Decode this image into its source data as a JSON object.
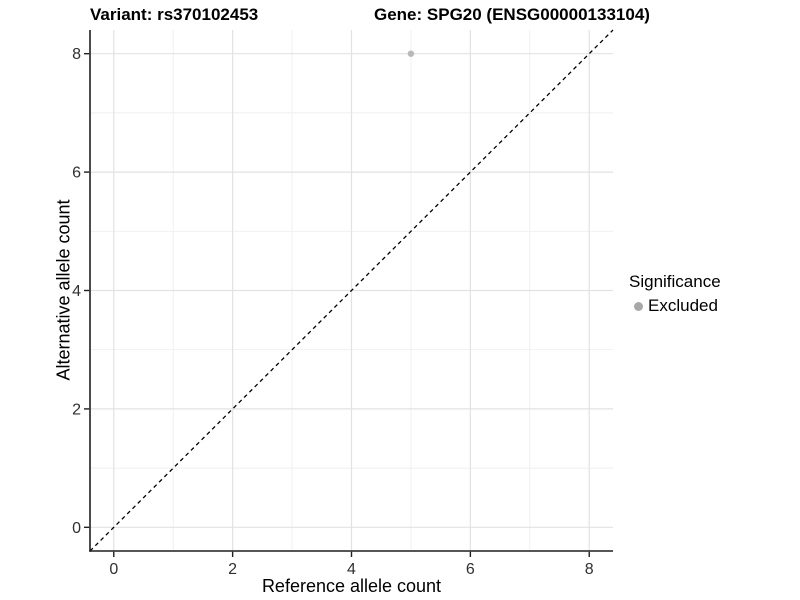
{
  "titles": {
    "variant_title": "Variant: rs370102453",
    "gene_title": "Gene: SPG20 (ENSG00000133104)"
  },
  "legend": {
    "title": "Significance",
    "items": [
      {
        "label": "Excluded",
        "color": "#a8a8a8"
      }
    ]
  },
  "colors": {
    "background": "#ffffff",
    "axis_line": "#1f1f1f",
    "tick_label": "#303030",
    "grid_major": "#e2e2e2",
    "grid_minor": "#efefef",
    "identity_line": "#000000",
    "point": "#b9b9b9"
  },
  "chart_data": {
    "type": "scatter",
    "title": "Variant: rs370102453 | Gene: SPG20 (ENSG00000133104)",
    "xlabel": "Reference allele count",
    "ylabel": "Alternative allele count",
    "xlim": [
      -0.4,
      8.4
    ],
    "ylim": [
      -0.4,
      8.4
    ],
    "x_ticks": [
      0,
      2,
      4,
      6,
      8
    ],
    "y_ticks": [
      0,
      2,
      4,
      6,
      8
    ],
    "x_minor_ticks": [
      1,
      3,
      5,
      7
    ],
    "y_minor_ticks": [
      1,
      3,
      5,
      7
    ],
    "grid": true,
    "legend_position": "right",
    "series": [
      {
        "name": "Excluded",
        "color": "#b9b9b9",
        "points": [
          {
            "x": 5,
            "y": 8
          }
        ]
      }
    ],
    "reference_line": {
      "slope": 1,
      "intercept": 0,
      "style": "dashed",
      "color": "#000000",
      "meaning": "identity line y = x"
    }
  }
}
